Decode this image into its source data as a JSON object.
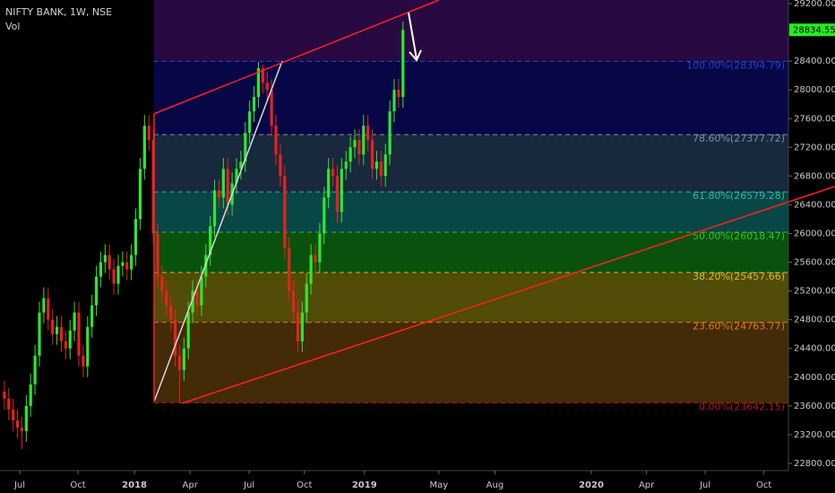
{
  "chart_data": {
    "type": "candlestick",
    "title": "NIFTY BANK, 1W, NSE",
    "subtitle": "Vol",
    "up_color": "#2ee62e",
    "down_color": "#e82020",
    "open": [
      23800,
      23700,
      23550,
      23400,
      23300,
      23250,
      23600,
      23900,
      24300,
      24900,
      25100,
      24800,
      24600,
      24700,
      24500,
      24400,
      24650,
      24900,
      24300,
      24150,
      24700,
      25000,
      25400,
      25600,
      25700,
      25500,
      25300,
      25550,
      25600,
      25500,
      25700,
      26200,
      26900,
      27500,
      27300,
      26000,
      25400,
      25200,
      25000,
      24800,
      24300,
      24100,
      24400,
      24900,
      25200,
      25000,
      25400,
      25700,
      26100,
      26600,
      26500,
      26900,
      26400,
      26700,
      26900,
      27000,
      27400,
      27700,
      27900,
      28300,
      28100,
      28000,
      27500,
      27100,
      26800,
      25800,
      25200,
      24900,
      24500,
      24900,
      25300,
      25700,
      25600,
      26000,
      26500,
      26900,
      26800,
      26300,
      26900,
      27000,
      27200,
      27300,
      27100,
      27500,
      27300,
      26900,
      27000,
      26800,
      27100,
      27700,
      28000,
      27900
    ],
    "high": [
      23950,
      23850,
      23700,
      23550,
      23450,
      23750,
      24050,
      24450,
      25050,
      25250,
      25250,
      24950,
      24850,
      24850,
      24650,
      24800,
      25050,
      25050,
      24450,
      24850,
      25150,
      25550,
      25750,
      25850,
      25850,
      25650,
      25700,
      25750,
      25750,
      25850,
      26350,
      27050,
      27650,
      27650,
      27450,
      26150,
      25550,
      25350,
      25150,
      24950,
      24450,
      24550,
      25050,
      25350,
      25350,
      25550,
      25850,
      26250,
      26750,
      26750,
      27050,
      27050,
      26850,
      27050,
      27150,
      27550,
      27850,
      28050,
      28389,
      28350,
      28250,
      28150,
      27650,
      27250,
      26950,
      25950,
      25350,
      25050,
      25050,
      25450,
      25850,
      25850,
      26150,
      26650,
      27050,
      27050,
      26950,
      27050,
      27150,
      27350,
      27450,
      27450,
      27650,
      27650,
      27450,
      27150,
      27150,
      27250,
      27850,
      28150,
      28150,
      28950
    ],
    "low": [
      23550,
      23400,
      23250,
      23150,
      23000,
      23100,
      23450,
      23750,
      24150,
      24750,
      24650,
      24450,
      24450,
      24350,
      24250,
      24250,
      24500,
      24150,
      24000,
      24000,
      24550,
      24850,
      25250,
      25450,
      25350,
      25150,
      25150,
      25400,
      25350,
      25350,
      25550,
      26050,
      26750,
      27150,
      25850,
      25250,
      25050,
      24850,
      24650,
      24150,
      23642.15,
      23950,
      24250,
      24750,
      24850,
      24850,
      25250,
      25550,
      25950,
      26350,
      26350,
      26250,
      26250,
      26550,
      26750,
      26850,
      27250,
      27550,
      27750,
      27950,
      27850,
      27350,
      26950,
      26650,
      25650,
      25050,
      24750,
      24350,
      24350,
      24750,
      25150,
      25450,
      25450,
      25850,
      26350,
      26650,
      26150,
      26150,
      26750,
      26850,
      27050,
      26950,
      26950,
      27150,
      26750,
      26750,
      26650,
      26650,
      26950,
      27550,
      27750,
      27750
    ],
    "close": [
      23700,
      23550,
      23400,
      23300,
      23250,
      23600,
      23900,
      24300,
      24900,
      25100,
      24800,
      24600,
      24700,
      24500,
      24400,
      24650,
      24900,
      24300,
      24150,
      24700,
      25000,
      25400,
      25600,
      25700,
      25500,
      25300,
      25550,
      25600,
      25500,
      25700,
      26200,
      26900,
      27500,
      27300,
      26000,
      25400,
      25200,
      25000,
      24800,
      24300,
      24100,
      24400,
      24900,
      25200,
      25000,
      25400,
      25700,
      26100,
      26600,
      26500,
      26900,
      26400,
      26700,
      26900,
      27000,
      27400,
      27700,
      27900,
      28300,
      28100,
      28000,
      27500,
      27100,
      26800,
      25800,
      25200,
      24900,
      24500,
      24900,
      25300,
      25700,
      25600,
      26000,
      26500,
      26900,
      26800,
      26300,
      26900,
      27000,
      27200,
      27300,
      27100,
      27500,
      27300,
      26900,
      27000,
      26800,
      27100,
      27700,
      28000,
      27900,
      28834.55
    ],
    "last_price_color": "#22ee22",
    "xlim": [
      -1,
      179
    ],
    "xticks": [
      {
        "value": 3.5,
        "label": "Jul"
      },
      {
        "value": 16.8,
        "label": "Oct"
      },
      {
        "value": 29.7,
        "label": "2018"
      },
      {
        "value": 42.4,
        "label": "Apr"
      },
      {
        "value": 55.9,
        "label": "Jul"
      },
      {
        "value": 68.5,
        "label": "Oct"
      },
      {
        "value": 82.2,
        "label": "2019"
      },
      {
        "value": 99.2,
        "label": "May"
      },
      {
        "value": 112,
        "label": "Aug"
      },
      {
        "value": 134,
        "label": "2020"
      },
      {
        "value": 146.6,
        "label": "Apr"
      },
      {
        "value": 160,
        "label": "Jul"
      },
      {
        "value": 173.4,
        "label": "Oct"
      }
    ],
    "ylim": [
      22700,
      29250
    ],
    "yticks": [
      {
        "value": 22800,
        "label": "22800.00"
      },
      {
        "value": 23200,
        "label": "23200.00"
      },
      {
        "value": 23600,
        "label": "23600.00"
      },
      {
        "value": 24000,
        "label": "24000.00"
      },
      {
        "value": 24400,
        "label": "24400.00"
      },
      {
        "value": 24800,
        "label": "24800.00"
      },
      {
        "value": 25200,
        "label": "25200.00"
      },
      {
        "value": 25600,
        "label": "25600.00"
      },
      {
        "value": 26000,
        "label": "26000.00"
      },
      {
        "value": 26400,
        "label": "26400.00"
      },
      {
        "value": 26800,
        "label": "26800.00"
      },
      {
        "value": 27200,
        "label": "27200.00"
      },
      {
        "value": 27600,
        "label": "27600.00"
      },
      {
        "value": 28000,
        "label": "28000.00"
      },
      {
        "value": 28400,
        "label": "28400.00"
      },
      {
        "value": 28800,
        "label": "28800.00"
      },
      {
        "value": 29200,
        "label": "29200.00"
      }
    ],
    "fib_levels": [
      {
        "value": 23642.15,
        "label": "0.00%(23642.15)",
        "color": "#b01818",
        "fill": "#4a3008"
      },
      {
        "value": 24763.77,
        "label": "23.60%(24763.77)",
        "color": "#e07818",
        "fill": "#5a5408"
      },
      {
        "value": 25457.66,
        "label": "38.20%(25457.66)",
        "color": "#c8c030",
        "fill": "#0c5a10"
      },
      {
        "value": 26018.47,
        "label": "50.00%(26018.47)",
        "color": "#30c030",
        "fill": "#0a4e4e"
      },
      {
        "value": 26579.28,
        "label": "61.80%(26579.28)",
        "color": "#30b0a8",
        "fill": "#1b2c44"
      },
      {
        "value": 27377.72,
        "label": "78.60%(27377.72)",
        "color": "#7890a8",
        "fill": "#08084e"
      },
      {
        "value": 28394.79,
        "label": "100.00%(28394.79)",
        "color": "#2040d0",
        "fill": "#2c0a48"
      }
    ]
  }
}
